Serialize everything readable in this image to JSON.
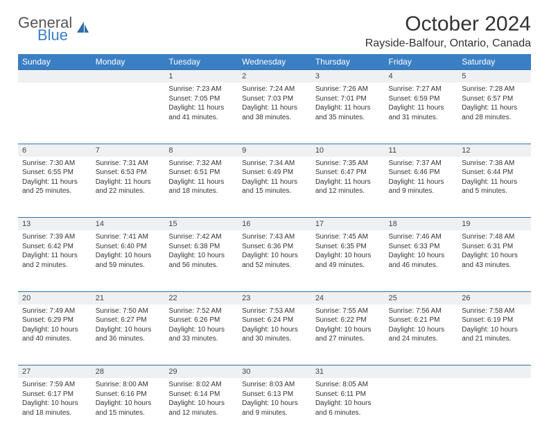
{
  "brand": {
    "general": "General",
    "blue": "Blue"
  },
  "title": "October 2024",
  "location": "Rayside-Balfour, Ontario, Canada",
  "colors": {
    "header_bg": "#3a7fc4",
    "header_text": "#ffffff",
    "daynum_bg": "#eef0f2",
    "daynum_border": "#2f6fa8",
    "body_text": "#333333",
    "page_bg": "#ffffff"
  },
  "layout": {
    "columns": 7,
    "rows": 5,
    "cell_font_size": 10,
    "header_font_size": 12
  },
  "weekdays": [
    "Sunday",
    "Monday",
    "Tuesday",
    "Wednesday",
    "Thursday",
    "Friday",
    "Saturday"
  ],
  "weeks": [
    [
      null,
      null,
      {
        "n": "1",
        "sr": "Sunrise: 7:23 AM",
        "ss": "Sunset: 7:05 PM",
        "dl": "Daylight: 11 hours and 41 minutes."
      },
      {
        "n": "2",
        "sr": "Sunrise: 7:24 AM",
        "ss": "Sunset: 7:03 PM",
        "dl": "Daylight: 11 hours and 38 minutes."
      },
      {
        "n": "3",
        "sr": "Sunrise: 7:26 AM",
        "ss": "Sunset: 7:01 PM",
        "dl": "Daylight: 11 hours and 35 minutes."
      },
      {
        "n": "4",
        "sr": "Sunrise: 7:27 AM",
        "ss": "Sunset: 6:59 PM",
        "dl": "Daylight: 11 hours and 31 minutes."
      },
      {
        "n": "5",
        "sr": "Sunrise: 7:28 AM",
        "ss": "Sunset: 6:57 PM",
        "dl": "Daylight: 11 hours and 28 minutes."
      }
    ],
    [
      {
        "n": "6",
        "sr": "Sunrise: 7:30 AM",
        "ss": "Sunset: 6:55 PM",
        "dl": "Daylight: 11 hours and 25 minutes."
      },
      {
        "n": "7",
        "sr": "Sunrise: 7:31 AM",
        "ss": "Sunset: 6:53 PM",
        "dl": "Daylight: 11 hours and 22 minutes."
      },
      {
        "n": "8",
        "sr": "Sunrise: 7:32 AM",
        "ss": "Sunset: 6:51 PM",
        "dl": "Daylight: 11 hours and 18 minutes."
      },
      {
        "n": "9",
        "sr": "Sunrise: 7:34 AM",
        "ss": "Sunset: 6:49 PM",
        "dl": "Daylight: 11 hours and 15 minutes."
      },
      {
        "n": "10",
        "sr": "Sunrise: 7:35 AM",
        "ss": "Sunset: 6:47 PM",
        "dl": "Daylight: 11 hours and 12 minutes."
      },
      {
        "n": "11",
        "sr": "Sunrise: 7:37 AM",
        "ss": "Sunset: 6:46 PM",
        "dl": "Daylight: 11 hours and 9 minutes."
      },
      {
        "n": "12",
        "sr": "Sunrise: 7:38 AM",
        "ss": "Sunset: 6:44 PM",
        "dl": "Daylight: 11 hours and 5 minutes."
      }
    ],
    [
      {
        "n": "13",
        "sr": "Sunrise: 7:39 AM",
        "ss": "Sunset: 6:42 PM",
        "dl": "Daylight: 11 hours and 2 minutes."
      },
      {
        "n": "14",
        "sr": "Sunrise: 7:41 AM",
        "ss": "Sunset: 6:40 PM",
        "dl": "Daylight: 10 hours and 59 minutes."
      },
      {
        "n": "15",
        "sr": "Sunrise: 7:42 AM",
        "ss": "Sunset: 6:38 PM",
        "dl": "Daylight: 10 hours and 56 minutes."
      },
      {
        "n": "16",
        "sr": "Sunrise: 7:43 AM",
        "ss": "Sunset: 6:36 PM",
        "dl": "Daylight: 10 hours and 52 minutes."
      },
      {
        "n": "17",
        "sr": "Sunrise: 7:45 AM",
        "ss": "Sunset: 6:35 PM",
        "dl": "Daylight: 10 hours and 49 minutes."
      },
      {
        "n": "18",
        "sr": "Sunrise: 7:46 AM",
        "ss": "Sunset: 6:33 PM",
        "dl": "Daylight: 10 hours and 46 minutes."
      },
      {
        "n": "19",
        "sr": "Sunrise: 7:48 AM",
        "ss": "Sunset: 6:31 PM",
        "dl": "Daylight: 10 hours and 43 minutes."
      }
    ],
    [
      {
        "n": "20",
        "sr": "Sunrise: 7:49 AM",
        "ss": "Sunset: 6:29 PM",
        "dl": "Daylight: 10 hours and 40 minutes."
      },
      {
        "n": "21",
        "sr": "Sunrise: 7:50 AM",
        "ss": "Sunset: 6:27 PM",
        "dl": "Daylight: 10 hours and 36 minutes."
      },
      {
        "n": "22",
        "sr": "Sunrise: 7:52 AM",
        "ss": "Sunset: 6:26 PM",
        "dl": "Daylight: 10 hours and 33 minutes."
      },
      {
        "n": "23",
        "sr": "Sunrise: 7:53 AM",
        "ss": "Sunset: 6:24 PM",
        "dl": "Daylight: 10 hours and 30 minutes."
      },
      {
        "n": "24",
        "sr": "Sunrise: 7:55 AM",
        "ss": "Sunset: 6:22 PM",
        "dl": "Daylight: 10 hours and 27 minutes."
      },
      {
        "n": "25",
        "sr": "Sunrise: 7:56 AM",
        "ss": "Sunset: 6:21 PM",
        "dl": "Daylight: 10 hours and 24 minutes."
      },
      {
        "n": "26",
        "sr": "Sunrise: 7:58 AM",
        "ss": "Sunset: 6:19 PM",
        "dl": "Daylight: 10 hours and 21 minutes."
      }
    ],
    [
      {
        "n": "27",
        "sr": "Sunrise: 7:59 AM",
        "ss": "Sunset: 6:17 PM",
        "dl": "Daylight: 10 hours and 18 minutes."
      },
      {
        "n": "28",
        "sr": "Sunrise: 8:00 AM",
        "ss": "Sunset: 6:16 PM",
        "dl": "Daylight: 10 hours and 15 minutes."
      },
      {
        "n": "29",
        "sr": "Sunrise: 8:02 AM",
        "ss": "Sunset: 6:14 PM",
        "dl": "Daylight: 10 hours and 12 minutes."
      },
      {
        "n": "30",
        "sr": "Sunrise: 8:03 AM",
        "ss": "Sunset: 6:13 PM",
        "dl": "Daylight: 10 hours and 9 minutes."
      },
      {
        "n": "31",
        "sr": "Sunrise: 8:05 AM",
        "ss": "Sunset: 6:11 PM",
        "dl": "Daylight: 10 hours and 6 minutes."
      },
      null,
      null
    ]
  ]
}
